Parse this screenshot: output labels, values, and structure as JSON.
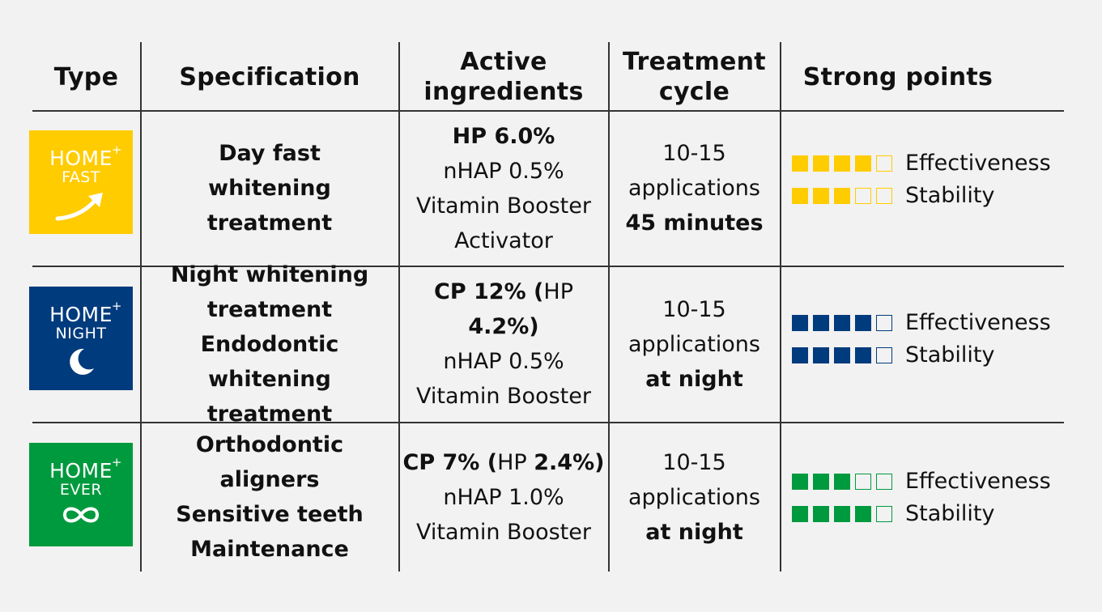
{
  "headers": {
    "type": "Type",
    "specification": "Specification",
    "active_line1": "Active",
    "active_line2": "ingredients",
    "cycle_line1": "Treatment",
    "cycle_line2": "cycle",
    "strong": "Strong points"
  },
  "rows": [
    {
      "logo": {
        "brand": "HOME",
        "plus": "+",
        "sub": "FAST",
        "color": "#ffcc00",
        "icon": "arrow-up-right-icon"
      },
      "spec": [
        "Day fast",
        "whitening",
        "treatment"
      ],
      "ingredients": {
        "l1": "HP 6.0%",
        "l2": "nHAP 0.5%",
        "l3": "Vitamin Booster",
        "l4": "Activator"
      },
      "cycle": {
        "l1": "10-15",
        "l2": "applications",
        "l3": "45 minutes"
      },
      "points": {
        "color": "#ffcc00",
        "effectiveness_label": "Effectiveness",
        "effectiveness": 4,
        "stability_label": "Stability",
        "stability": 3,
        "max": 5
      }
    },
    {
      "logo": {
        "brand": "HOME",
        "plus": "+",
        "sub": "NIGHT",
        "color": "#003b7d",
        "icon": "crescent-moon-icon"
      },
      "spec": [
        "Night whitening",
        "treatment",
        "Endodontic whitening",
        "treatment"
      ],
      "ingredients": {
        "l1a": "CP 12%",
        "l1b": " (",
        "l1c": "HP ",
        "l1d": "4.2%)",
        "l2": "nHAP 0.5%",
        "l3": "Vitamin Booster"
      },
      "cycle": {
        "l1": "10-15",
        "l2": "applications",
        "l3": "at night"
      },
      "points": {
        "color": "#003b7d",
        "effectiveness_label": "Effectiveness",
        "effectiveness": 4,
        "stability_label": "Stability",
        "stability": 4,
        "max": 5
      }
    },
    {
      "logo": {
        "brand": "HOME",
        "plus": "+",
        "sub": "EVER",
        "color": "#009a3e",
        "icon": "infinity-icon"
      },
      "spec": [
        "Orthodontic",
        "aligners",
        "Sensitive teeth",
        "Maintenance"
      ],
      "ingredients": {
        "l1a": "CP 7%",
        "l1b": " (",
        "l1c": "HP ",
        "l1d": "2.4%)",
        "l2": "nHAP 1.0%",
        "l3": "Vitamin Booster"
      },
      "cycle": {
        "l1": "10-15",
        "l2": "applications",
        "l3": "at night"
      },
      "points": {
        "color": "#009a3e",
        "effectiveness_label": "Effectiveness",
        "effectiveness": 3,
        "stability_label": "Stability",
        "stability": 4,
        "max": 5
      }
    }
  ]
}
